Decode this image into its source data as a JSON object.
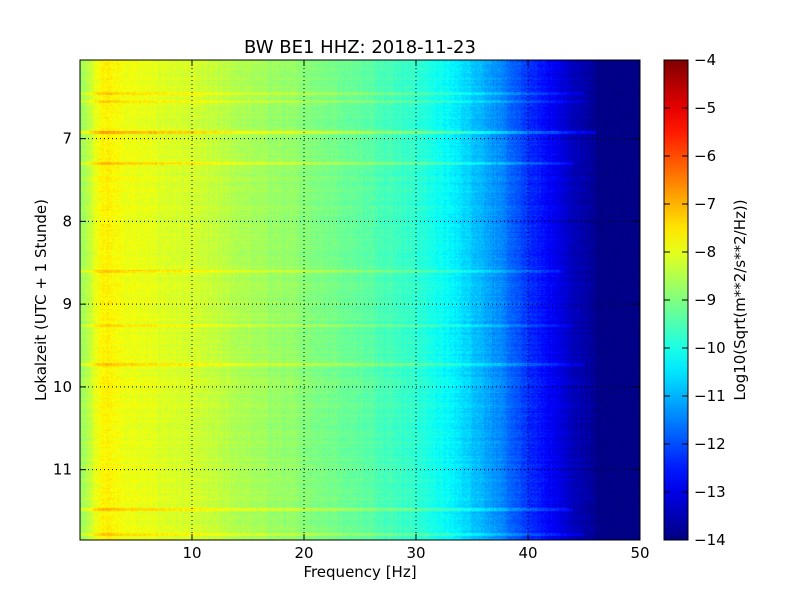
{
  "chart_data": {
    "type": "heatmap",
    "title": "BW BE1 HHZ: 2018-11-23",
    "xlabel": "Frequency [Hz]",
    "ylabel": "Lokalzeit (UTC + 1 Stunde)",
    "colorbar_label": "Log10(Sqrt(m**2/s**2/Hz))",
    "xlim": [
      0,
      50
    ],
    "ylim": [
      11.85,
      6.05
    ],
    "y_inverted": true,
    "clim": [
      -14,
      -4
    ],
    "colormap": "jet",
    "grid": true,
    "xticks": [
      10,
      20,
      30,
      40,
      50
    ],
    "xtick_labels": [
      "10",
      "20",
      "30",
      "40",
      "50"
    ],
    "yticks": [
      7,
      8,
      9,
      10,
      11
    ],
    "ytick_labels": [
      "7",
      "8",
      "9",
      "10",
      "11"
    ],
    "cticks": [
      -4,
      -5,
      -6,
      -7,
      -8,
      -9,
      -10,
      -11,
      -12,
      -13,
      -14
    ],
    "ctick_labels": [
      "−4",
      "−5",
      "−6",
      "−7",
      "−8",
      "−9",
      "−10",
      "−11",
      "−12",
      "−13",
      "−14"
    ],
    "spectrum_profile": {
      "frequency_hz": [
        0,
        2,
        4,
        6,
        10,
        15,
        20,
        25,
        30,
        33,
        36,
        38,
        40,
        42,
        44,
        46,
        50
      ],
      "log10_psd": [
        -8.8,
        -7.6,
        -7.9,
        -8.0,
        -8.2,
        -8.6,
        -8.9,
        -9.3,
        -9.8,
        -10.3,
        -11.0,
        -11.6,
        -12.3,
        -12.8,
        -13.4,
        -13.8,
        -14.0
      ]
    },
    "bright_lines": [
      {
        "time_h": 6.45,
        "log10_psd_offset": 0.6,
        "max_frequency_hz": 45
      },
      {
        "time_h": 6.55,
        "log10_psd_offset": 0.4,
        "max_frequency_hz": 45
      },
      {
        "time_h": 6.92,
        "log10_psd_offset": 0.9,
        "max_frequency_hz": 46
      },
      {
        "time_h": 7.3,
        "log10_psd_offset": 0.7,
        "max_frequency_hz": 44
      },
      {
        "time_h": 8.6,
        "log10_psd_offset": 0.6,
        "max_frequency_hz": 43
      },
      {
        "time_h": 9.25,
        "log10_psd_offset": 0.5,
        "max_frequency_hz": 44
      },
      {
        "time_h": 9.72,
        "log10_psd_offset": 0.6,
        "max_frequency_hz": 45
      },
      {
        "time_h": 11.48,
        "log10_psd_offset": 0.8,
        "max_frequency_hz": 44
      },
      {
        "time_h": 11.78,
        "log10_psd_offset": 0.6,
        "max_frequency_hz": 45
      }
    ]
  }
}
